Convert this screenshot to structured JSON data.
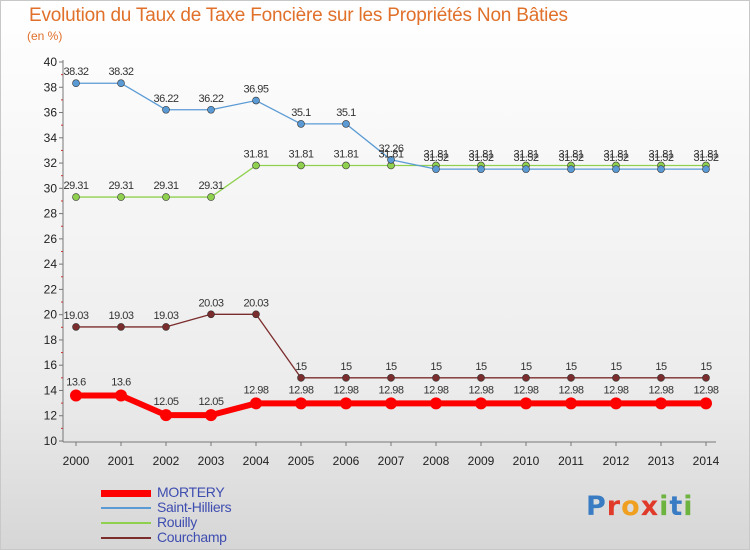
{
  "title": "Evolution du Taux de Taxe Foncière sur les Propriétés Non Bâties",
  "subtitle": "(en %)",
  "logo_text": "Proxiti",
  "chart_data": {
    "type": "line",
    "x": [
      "2000",
      "2001",
      "2002",
      "2003",
      "2004",
      "2005",
      "2006",
      "2007",
      "2008",
      "2009",
      "2010",
      "2011",
      "2012",
      "2013",
      "2014"
    ],
    "ylim": [
      10,
      40
    ],
    "yticks": [
      "10",
      "12",
      "14",
      "16",
      "18",
      "20",
      "22",
      "24",
      "26",
      "28",
      "30",
      "32",
      "34",
      "36",
      "38",
      "40"
    ],
    "grid": false,
    "legend_position": "bottom-left",
    "series": [
      {
        "name": "MORTERY",
        "color": "#ff0000",
        "values": [
          13.6,
          13.6,
          12.05,
          12.05,
          12.98,
          12.98,
          12.98,
          12.98,
          12.98,
          12.98,
          12.98,
          12.98,
          12.98,
          12.98,
          12.98
        ],
        "labels": [
          "13.6",
          "13.6",
          "12.05",
          "12.05",
          "12.98",
          "12.98",
          "12.98",
          "12.98",
          "12.98",
          "12.98",
          "12.98",
          "12.98",
          "12.98",
          "12.98",
          "12.98"
        ]
      },
      {
        "name": "Saint-Hilliers",
        "color": "#5b9bd5",
        "values": [
          38.32,
          38.32,
          36.22,
          36.22,
          36.95,
          35.1,
          35.1,
          32.26,
          31.52,
          31.52,
          31.52,
          31.52,
          31.52,
          31.52,
          31.52
        ],
        "labels": [
          "38.32",
          "38.32",
          "36.22",
          "36.22",
          "36.95",
          "35.1",
          "35.1",
          "32.26",
          "31.52",
          "31.52",
          "31.52",
          "31.52",
          "31.52",
          "31.52",
          "31.52"
        ]
      },
      {
        "name": "Rouilly",
        "color": "#8fd14f",
        "values": [
          29.31,
          29.31,
          29.31,
          29.31,
          31.81,
          31.81,
          31.81,
          31.81,
          31.81,
          31.81,
          31.81,
          31.81,
          31.81,
          31.81,
          31.81
        ],
        "labels": [
          "29.31",
          "29.31",
          "29.31",
          "29.31",
          "31.81",
          "31.81",
          "31.81",
          "31.81",
          "31.81",
          "31.81",
          "31.81",
          "31.81",
          "31.81",
          "31.81",
          "31.81"
        ]
      },
      {
        "name": "Courchamp",
        "color": "#7b2c2c",
        "values": [
          19.03,
          19.03,
          19.03,
          20.03,
          20.03,
          15,
          15,
          15,
          15,
          15,
          15,
          15,
          15,
          15,
          15
        ],
        "labels": [
          "19.03",
          "19.03",
          "19.03",
          "20.03",
          "20.03",
          "15",
          "15",
          "15",
          "15",
          "15",
          "15",
          "15",
          "15",
          "15",
          "15"
        ]
      }
    ]
  }
}
